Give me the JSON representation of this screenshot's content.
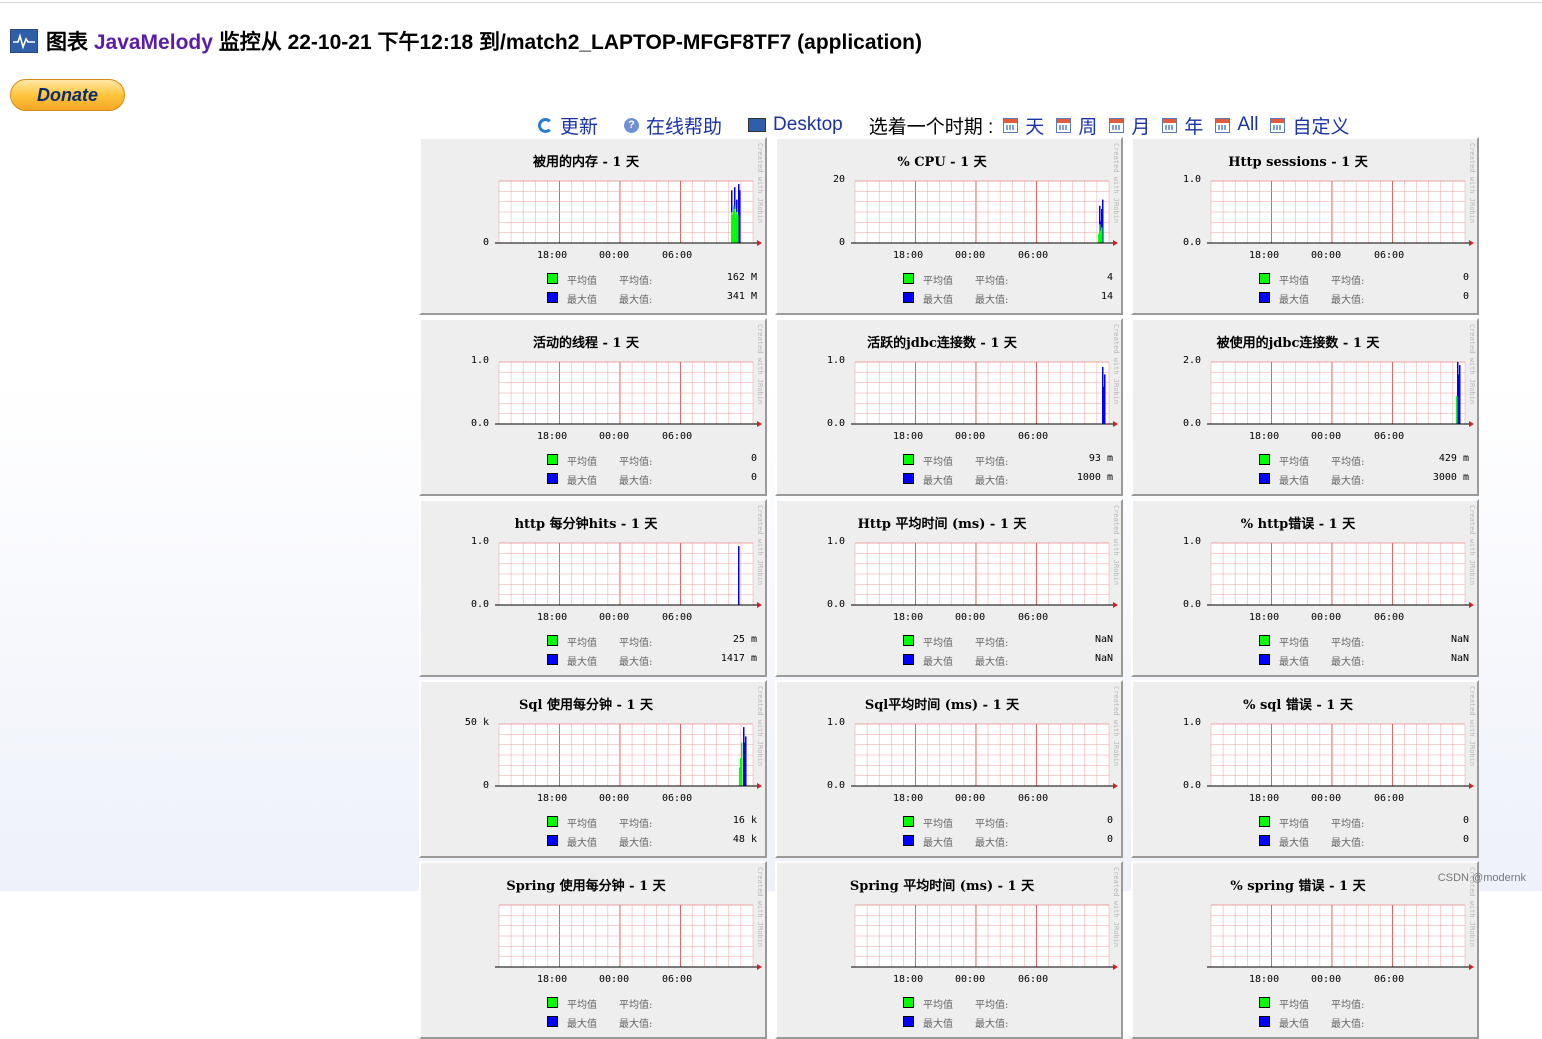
{
  "header": {
    "prefix": "图表 ",
    "brand": "JavaMelody",
    "suffix": " 监控从 22-10-21 下午12:18 到/match2_LAPTOP-MFGF8TF7 (application)",
    "icon": "monitor-chart-icon"
  },
  "donate": {
    "label": "Donate"
  },
  "toolbar": {
    "refresh": "更新",
    "help": "在线帮助",
    "desktop": "Desktop",
    "period_label": "选着一个时期 :",
    "periods": [
      "天",
      "周",
      "月",
      "年",
      "All",
      "自定义"
    ]
  },
  "common": {
    "x_ticks": [
      "18:00",
      "00:00",
      "06:00"
    ],
    "legend_avg": "平均值",
    "legend_max": "最大值",
    "avg_label": "平均值:",
    "max_label": "最大值:",
    "credit": "Created with JRobin",
    "colors": {
      "avg": "#00ff00",
      "max": "#0000ff",
      "grid": "#f0a0a0",
      "grid_major": "#e05050"
    }
  },
  "charts": [
    {
      "title": "被用的内存 - 1 天",
      "ytop": "",
      "ybot": "0",
      "avg": "162 M",
      "max": "341 M",
      "bars": "mem"
    },
    {
      "title": "% CPU - 1 天",
      "ytop": "20",
      "ybot": "0",
      "avg": "4",
      "max": "14",
      "bars": "cpu"
    },
    {
      "title": "Http sessions - 1 天",
      "ytop": "1.0",
      "ybot": "0.0",
      "avg": "0",
      "max": "0",
      "bars": "none"
    },
    {
      "title": "活动的线程 - 1 天",
      "ytop": "1.0",
      "ybot": "0.0",
      "avg": "0",
      "max": "0",
      "bars": "none"
    },
    {
      "title": "活跃的jdbc连接数 - 1 天",
      "ytop": "1.0",
      "ybot": "0.0",
      "avg": "93 m",
      "max": "1000 m",
      "bars": "jdbc"
    },
    {
      "title": "被使用的jdbc连接数 - 1 天",
      "ytop": "2.0",
      "ybot": "0.0",
      "avg": "429 m",
      "max": "3000 m",
      "bars": "jdbc2"
    },
    {
      "title": "http 每分钟hits - 1 天",
      "ytop": "1.0",
      "ybot": "0.0",
      "avg": "25 m",
      "max": "1417 m",
      "bars": "hits"
    },
    {
      "title": "Http 平均时间 (ms) - 1 天",
      "ytop": "1.0",
      "ybot": "0.0",
      "avg": "NaN",
      "max": "NaN",
      "bars": "none"
    },
    {
      "title": "% http错误 - 1 天",
      "ytop": "1.0",
      "ybot": "0.0",
      "avg": "NaN",
      "max": "NaN",
      "bars": "none"
    },
    {
      "title": "Sql 使用每分钟 - 1 天",
      "ytop": "50 k",
      "ybot": "0",
      "avg": "16 k",
      "max": "48 k",
      "bars": "sql"
    },
    {
      "title": "Sql平均时间 (ms) - 1 天",
      "ytop": "1.0",
      "ybot": "0.0",
      "avg": "0",
      "max": "0",
      "bars": "none"
    },
    {
      "title": "% sql 错误 - 1 天",
      "ytop": "1.0",
      "ybot": "0.0",
      "avg": "0",
      "max": "0",
      "bars": "none"
    },
    {
      "title": "Spring 使用每分钟 - 1 天",
      "ytop": "",
      "ybot": "",
      "avg": "",
      "max": "",
      "bars": "none"
    },
    {
      "title": "Spring 平均时间 (ms) - 1 天",
      "ytop": "",
      "ybot": "",
      "avg": "",
      "max": "",
      "bars": "none"
    },
    {
      "title": "% spring 错误 - 1 天",
      "ytop": "",
      "ybot": "",
      "avg": "",
      "max": "",
      "bars": "none"
    }
  ],
  "watermark": "CSDN @modernk"
}
